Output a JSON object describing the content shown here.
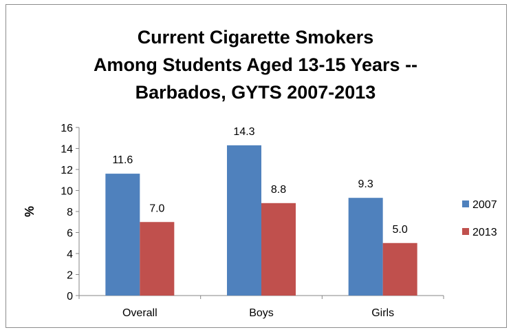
{
  "chart_data": {
    "type": "bar",
    "title_lines": [
      "Current Cigarette Smokers",
      "Among Students Aged 13-15 Years --",
      "Barbados, GYTS 2007-2013"
    ],
    "categories": [
      "Overall",
      "Boys",
      "Girls"
    ],
    "series": [
      {
        "name": "2007",
        "values": [
          11.6,
          14.3,
          9.3
        ],
        "labels": [
          "11.6",
          "14.3",
          "9.3"
        ],
        "color": "#4F81BD"
      },
      {
        "name": "2013",
        "values": [
          7.0,
          8.8,
          5.0
        ],
        "labels": [
          "7.0",
          "8.8",
          "5.0"
        ],
        "color": "#C0504D"
      }
    ],
    "ylabel": "%",
    "xlabel": "",
    "ylim": [
      0,
      16
    ],
    "yticks": [
      0,
      2,
      4,
      6,
      8,
      10,
      12,
      14,
      16
    ],
    "grid": false,
    "legend_position": "right"
  }
}
